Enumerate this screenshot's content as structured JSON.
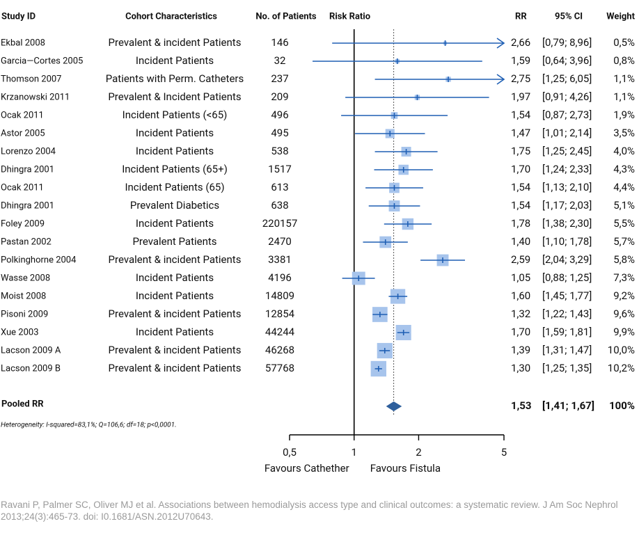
{
  "chart_data": {
    "type": "forest",
    "headers": {
      "study": "Study ID",
      "cohort": "Cohort Characteristics",
      "patients": "No. of Patients",
      "plot": "Risk Ratio",
      "rr": "RR",
      "ci": "95% CI",
      "weight": "Weight"
    },
    "categories": [
      "Ekbal 2008",
      "Garcia—Cortes 2005",
      "Thomson 2007",
      "Krzanowski 2011",
      "Ocak 2011",
      "Astor 2005",
      "Lorenzo 2004",
      "Dhingra 2001",
      "Ocak 2011",
      "Dhingra 2001",
      "Foley 2009",
      "Pastan 2002",
      "Polkinghorne 2004",
      "Wasse 2008",
      "Moist 2008",
      "Pisoni 2009",
      "Xue 2003",
      "Lacson 2009 A",
      "Lacson 2009 B"
    ],
    "cohort": [
      "Prevalent & incident Patients",
      "Incident Patients",
      "Patients with Perm. Catheters",
      "Prevalent & Incident Patients",
      "Incident Patients (<65)",
      "Incident Patients",
      "Incident Patients",
      "Incident Patients (65+)",
      "Incident Patients (65)",
      "Prevalent Diabetics",
      "Incident Patients",
      "Prevalent Patients",
      "Prevalent & incident Patients",
      "Incident Patients",
      "Incident Patients",
      "Prevalent & incident Patients",
      "Incident Patients",
      "Prevalent & incident Patients",
      "Prevalent & incident Patients"
    ],
    "patients": [
      146,
      32,
      237,
      209,
      496,
      495,
      538,
      1517,
      613,
      638,
      220157,
      2470,
      3381,
      4196,
      14809,
      12854,
      44244,
      46268,
      57768
    ],
    "values": [
      2.66,
      1.59,
      2.75,
      1.97,
      1.54,
      1.47,
      1.75,
      1.7,
      1.54,
      1.54,
      1.78,
      1.4,
      2.59,
      1.05,
      1.6,
      1.32,
      1.7,
      1.39,
      1.3
    ],
    "value_labels": [
      "2,66",
      "1,59",
      "2,75",
      "1,97",
      "1,54",
      "1,47",
      "1,75",
      "1,70",
      "1,54",
      "1,54",
      "1,78",
      "1,40",
      "2,59",
      "1,05",
      "1,60",
      "1,32",
      "1,70",
      "1,39",
      "1,30"
    ],
    "ci_low": [
      0.79,
      0.64,
      1.25,
      0.91,
      0.87,
      1.01,
      1.25,
      1.24,
      1.13,
      1.17,
      1.38,
      1.1,
      2.04,
      0.88,
      1.45,
      1.22,
      1.59,
      1.31,
      1.25
    ],
    "ci_high": [
      8.96,
      3.96,
      6.05,
      4.26,
      2.73,
      2.14,
      2.45,
      2.33,
      2.1,
      2.03,
      2.3,
      1.78,
      3.29,
      1.25,
      1.77,
      1.43,
      1.81,
      1.47,
      1.35
    ],
    "ci_labels": [
      "[0,79; 8,96]",
      "[0,64; 3,96]",
      "[1,25; 6,05]",
      "[0,91; 4,26]",
      "[0,87; 2,73]",
      "[1,01; 2,14]",
      "[1,25; 2,45]",
      "[1,24; 2,33]",
      "[1,13; 2,10]",
      "[1,17; 2,03]",
      "[1,38; 2,30]",
      "[1,10; 1,78]",
      "[2,04; 3,29]",
      "[0,88; 1,25]",
      "[1,45; 1,77]",
      "[1,22; 1,43]",
      "[1,59; 1,81]",
      "[1,31; 1,47]",
      "[1,25; 1,35]"
    ],
    "weights": [
      0.5,
      0.8,
      1.1,
      1.1,
      1.9,
      3.5,
      4.0,
      4.3,
      4.4,
      5.1,
      5.5,
      5.7,
      5.8,
      7.3,
      9.2,
      9.6,
      9.9,
      10.0,
      10.2
    ],
    "weight_labels": [
      "0,5%",
      "0,8%",
      "1,1%",
      "1,1%",
      "1,9%",
      "3,5%",
      "4,0%",
      "4,3%",
      "4,4%",
      "5,1%",
      "5,5%",
      "5,7%",
      "5,8%",
      "7,3%",
      "9,2%",
      "9,6%",
      "9,9%",
      "10,0%",
      "10,2%"
    ],
    "pooled": {
      "label": "Pooled RR",
      "value": 1.53,
      "value_label": "1,53",
      "ci_low": 1.41,
      "ci_high": 1.67,
      "ci_label": "[1,41; 1,67]",
      "weight": 100,
      "weight_label": "100%"
    },
    "heterogeneity": "Heterogeneity: I-squared=83,1%; Q=106,6; df=18; p<0,0001.",
    "xlim": [
      0.5,
      5
    ],
    "xticks": [
      {
        "value": 0.5,
        "label": "0,5"
      },
      1,
      2,
      5
    ],
    "log_x": true,
    "null_line": 1,
    "xlabel_left": "Favours Cathether",
    "xlabel_right": "Favours Fistula",
    "color": "#1f5fb4",
    "box_color": "#a7c4ec",
    "diamond_color": "#2e5f9c",
    "source": "Ravani P, Palmer SC, Oliver MJ et al. Associations between hemodialysis access type and clinical outcomes: a systematic review. J Am Soc Nephrol 2013;24(3):465-73. doi: I0.1681/ASN.2012U70643."
  }
}
